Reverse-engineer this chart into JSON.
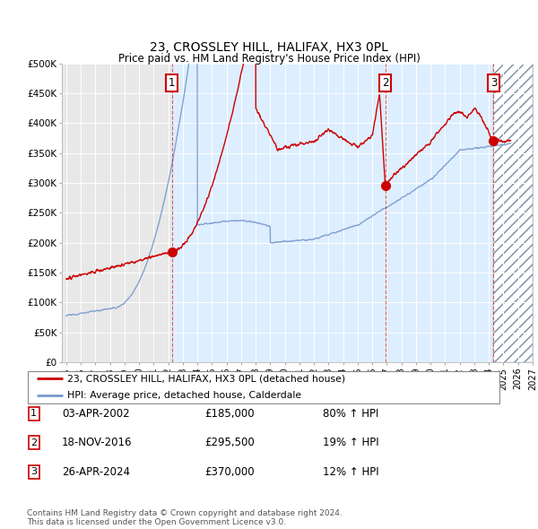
{
  "title": "23, CROSSLEY HILL, HALIFAX, HX3 0PL",
  "subtitle": "Price paid vs. HM Land Registry's House Price Index (HPI)",
  "ylabel_ticks": [
    "£0",
    "£50K",
    "£100K",
    "£150K",
    "£200K",
    "£250K",
    "£300K",
    "£350K",
    "£400K",
    "£450K",
    "£500K"
  ],
  "ytick_vals": [
    0,
    50000,
    100000,
    150000,
    200000,
    250000,
    300000,
    350000,
    400000,
    450000,
    500000
  ],
  "ylim": [
    0,
    500000
  ],
  "xlim_start": 1994.7,
  "xlim_end": 2027.0,
  "plot_bg_color": "#e8e8e8",
  "shade_bg_color": "#ddeeff",
  "grid_color": "#ffffff",
  "red_line_color": "#cc0000",
  "blue_line_color": "#7799cc",
  "transaction1_date": 2002.25,
  "transaction1_price": 185000,
  "transaction2_date": 2016.89,
  "transaction2_price": 295500,
  "transaction3_date": 2024.32,
  "transaction3_price": 370000,
  "shade_start": 2002.25,
  "shade_end": 2024.32,
  "future_start": 2024.32,
  "future_end": 2027.0,
  "legend_line1": "23, CROSSLEY HILL, HALIFAX, HX3 0PL (detached house)",
  "legend_line2": "HPI: Average price, detached house, Calderdale",
  "table_rows": [
    {
      "num": "1",
      "date": "03-APR-2002",
      "price": "£185,000",
      "change": "80% ↑ HPI"
    },
    {
      "num": "2",
      "date": "18-NOV-2016",
      "price": "£295,500",
      "change": "19% ↑ HPI"
    },
    {
      "num": "3",
      "date": "26-APR-2024",
      "price": "£370,000",
      "change": "12% ↑ HPI"
    }
  ],
  "footer": "Contains HM Land Registry data © Crown copyright and database right 2024.\nThis data is licensed under the Open Government Licence v3.0."
}
